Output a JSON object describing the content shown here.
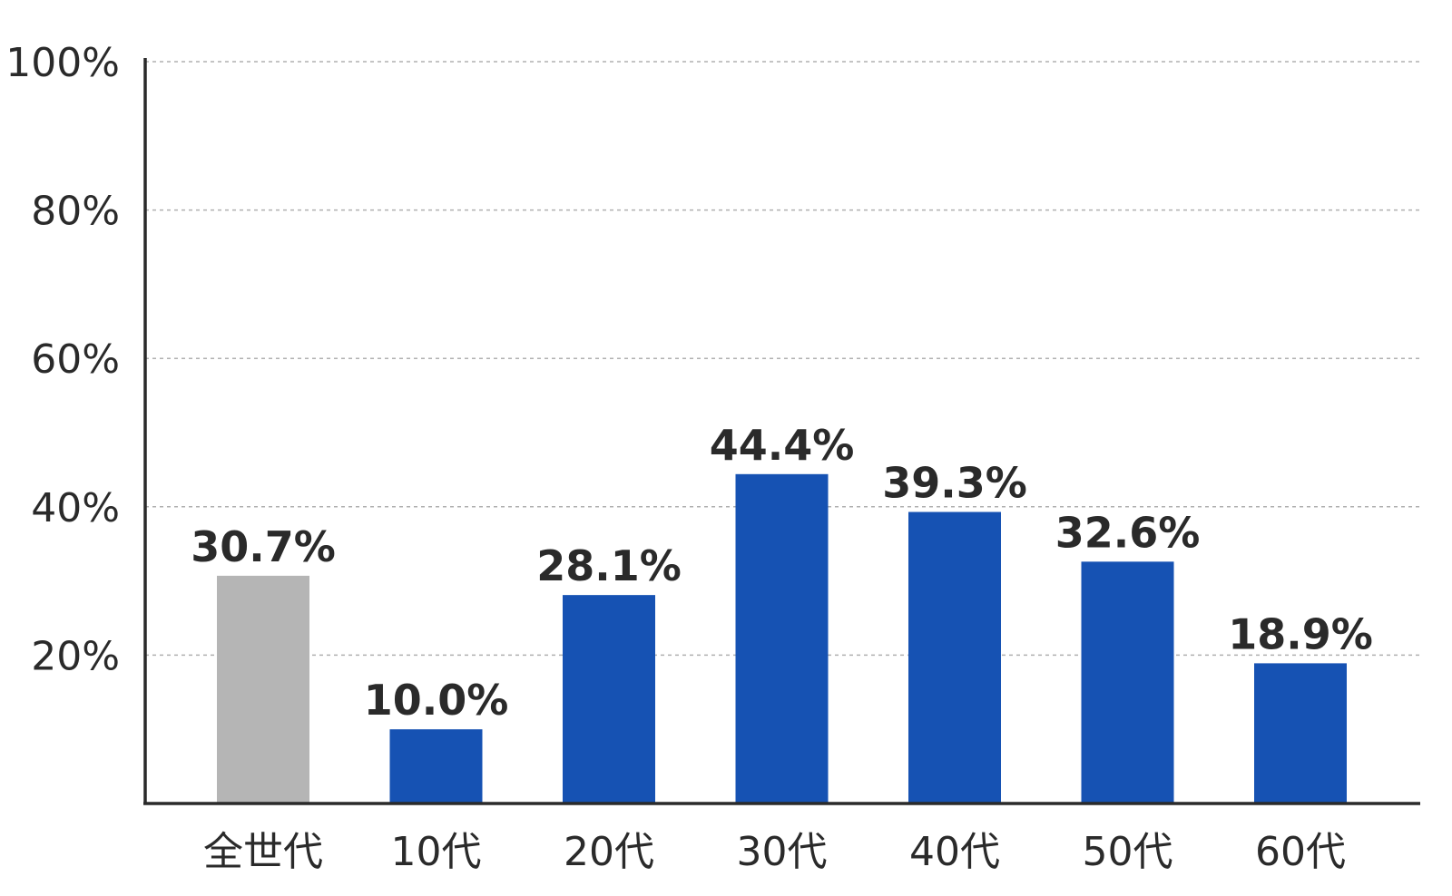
{
  "chart_data": {
    "type": "bar",
    "categories": [
      "全世代",
      "10代",
      "20代",
      "30代",
      "40代",
      "50代",
      "60代"
    ],
    "values": [
      30.7,
      10.0,
      28.1,
      44.4,
      39.3,
      32.6,
      18.9
    ],
    "value_labels": [
      "30.7%",
      "10.0%",
      "28.1%",
      "44.4%",
      "39.3%",
      "32.6%",
      "18.9%"
    ],
    "bar_colors": [
      "#b5b5b5",
      "#1652b3",
      "#1652b3",
      "#1652b3",
      "#1652b3",
      "#1652b3",
      "#1652b3"
    ],
    "ylim": [
      0,
      100
    ],
    "yticks": [
      20,
      40,
      60,
      80,
      100
    ],
    "ytick_labels": [
      "20%",
      "40%",
      "60%",
      "80%",
      "100%"
    ],
    "grid": true,
    "title": "",
    "xlabel": "",
    "ylabel": ""
  }
}
